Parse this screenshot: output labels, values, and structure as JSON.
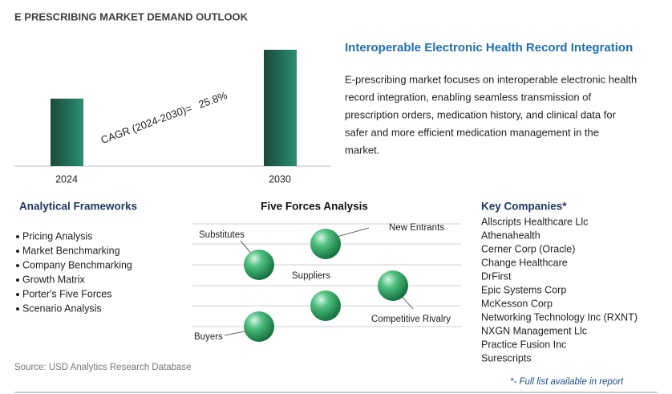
{
  "header": {
    "title": "E PRESCRIBING MARKET DEMAND OUTLOOK"
  },
  "chart_data": {
    "type": "bar",
    "categories": [
      "2024",
      "2030"
    ],
    "values": [
      58,
      100
    ]
  },
  "cagr": {
    "label": "CAGR (2024-2030)=",
    "value": "25.8%"
  },
  "summary": {
    "heading": "Interoperable Electronic Health Record Integration",
    "lines": [
      "E-prescribing market focuses on interoperable electronic health",
      "record integration, enabling seamless transmission of",
      "prescription orders, medication history, and clinical data for",
      "safer and more efficient medication management in the",
      "market."
    ]
  },
  "frameworks": {
    "heading": "Analytical Frameworks",
    "items": [
      "Pricing Analysis",
      "Market Benchmarking",
      "Company Benchmarking",
      "Growth Matrix",
      "Porter's Five Forces",
      "Scenario Analysis"
    ]
  },
  "five_forces": {
    "heading": "Five Forces Analysis",
    "forces": [
      "Substitutes",
      "New Entrants",
      "Suppliers",
      "Competitive Rivalry",
      "Buyers"
    ]
  },
  "companies": {
    "heading": "Key Companies*",
    "items": [
      "Allscripts Healthcare Llc",
      "Athenahealth",
      "Cerner Corp (Oracle)",
      "Change Healthcare",
      "DrFirst",
      "Epic Systems Corp",
      "McKesson Corp",
      "Networking Technology Inc (RXNT)",
      "NXGN Management Llc",
      "Practice Fusion Inc",
      "Surescripts"
    ],
    "footnote": "*- Full list available in report"
  },
  "source": "Source: USD Analytics Research Database"
}
